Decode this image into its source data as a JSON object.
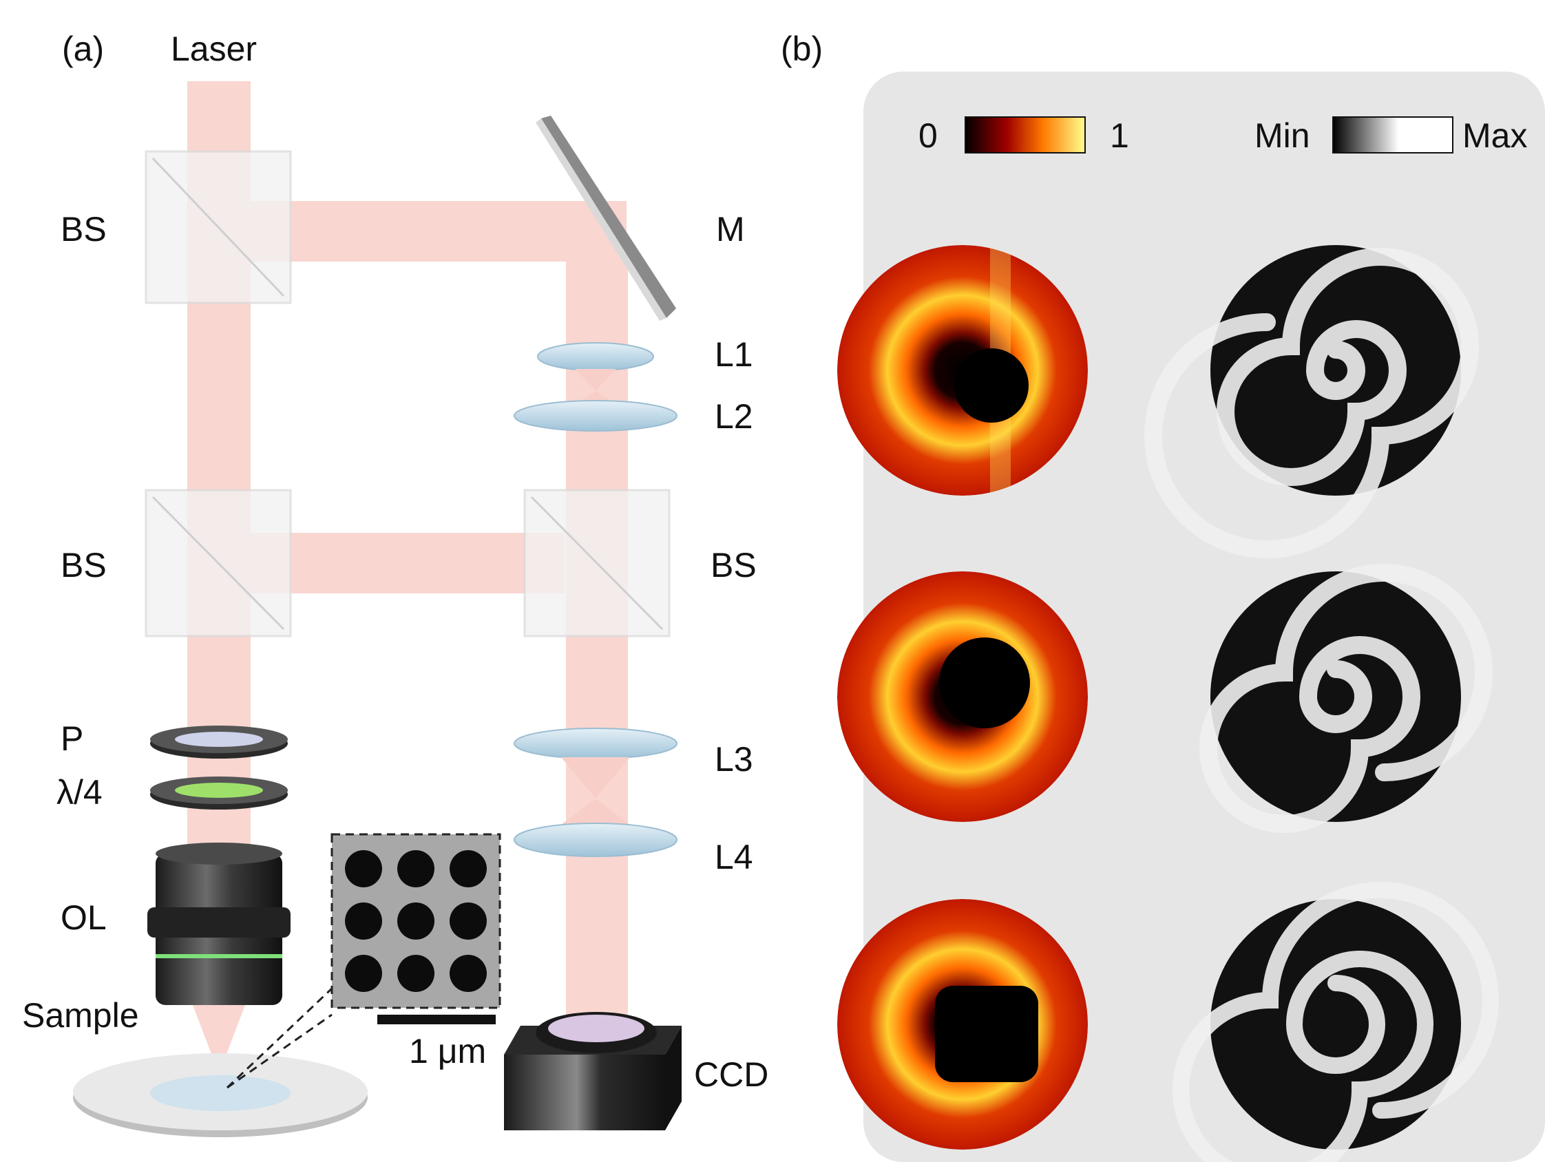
{
  "panel_a": {
    "label": "(a)",
    "components": {
      "laser": "Laser",
      "bs_top": "BS",
      "bs_mid_left": "BS",
      "bs_mid_right": "BS",
      "mirror": "M",
      "lens1": "L1",
      "lens2": "L2",
      "lens3": "L3",
      "lens4": "L4",
      "polarizer": "P",
      "quarter_wave": "λ/4",
      "objective": "OL",
      "sample": "Sample",
      "camera": "CCD"
    },
    "scale_bar": "1 μm"
  },
  "panel_b": {
    "label": "(b)",
    "colorbar_intensity": {
      "min_label": "0",
      "max_label": "1"
    },
    "colorbar_interference": {
      "min_label": "Min",
      "max_label": "Max"
    }
  },
  "colors": {
    "beam": "#f8cfc8",
    "panel_bg": "#e6e6e6",
    "lens": "#bcd6e6",
    "objective_ring": "#7fe07a"
  }
}
